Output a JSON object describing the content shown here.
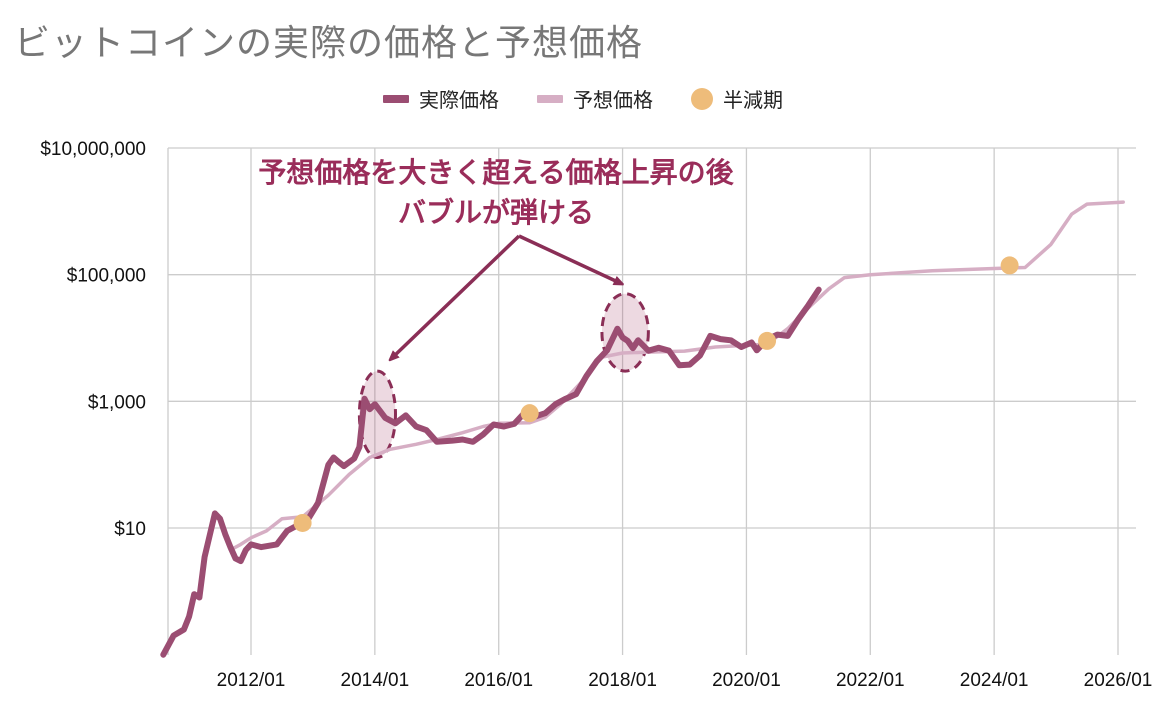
{
  "chart_data": {
    "type": "line",
    "title": "ビットコインの実際の価格と予想価格",
    "xlabel": "",
    "ylabel": "",
    "y_scale": "log",
    "ylim": [
      0.1,
      10000000
    ],
    "xlim": [
      "2010-07",
      "2026-02"
    ],
    "grid": true,
    "legend_position": "top",
    "y_tick_labels": [
      "$10",
      "$1,000",
      "$100,000",
      "$10,000,000"
    ],
    "y_tick_values": [
      10,
      1000,
      100000,
      10000000
    ],
    "x_tick_labels": [
      "2012/01",
      "2014/01",
      "2016/01",
      "2018/01",
      "2020/01",
      "2022/01",
      "2024/01",
      "2026/01"
    ],
    "x_tick_values": [
      "2012-01",
      "2014-01",
      "2016-01",
      "2018-01",
      "2020-01",
      "2022-01",
      "2024-01",
      "2026-01"
    ],
    "series": [
      {
        "name": "実際価格",
        "color": "#9b4d72",
        "points": [
          [
            "2010-08",
            0.1
          ],
          [
            "2010-10",
            0.2
          ],
          [
            "2010-12",
            0.25
          ],
          [
            "2011-01",
            0.4
          ],
          [
            "2011-02",
            0.9
          ],
          [
            "2011-03",
            0.8
          ],
          [
            "2011-04",
            3.5
          ],
          [
            "2011-06",
            17
          ],
          [
            "2011-07",
            14
          ],
          [
            "2011-08",
            8
          ],
          [
            "2011-09",
            5
          ],
          [
            "2011-10",
            3.3
          ],
          [
            "2011-11",
            3
          ],
          [
            "2011-12",
            4.5
          ],
          [
            "2012-01",
            5.5
          ],
          [
            "2012-03",
            5
          ],
          [
            "2012-06",
            5.5
          ],
          [
            "2012-08",
            9
          ],
          [
            "2012-10",
            11
          ],
          [
            "2012-12",
            13.5
          ],
          [
            "2013-02",
            25
          ],
          [
            "2013-04",
            100
          ],
          [
            "2013-05",
            130
          ],
          [
            "2013-06",
            110
          ],
          [
            "2013-07",
            95
          ],
          [
            "2013-09",
            125
          ],
          [
            "2013-10",
            190
          ],
          [
            "2013-11",
            1100
          ],
          [
            "2013-12",
            750
          ],
          [
            "2014-01",
            900
          ],
          [
            "2014-03",
            550
          ],
          [
            "2014-05",
            450
          ],
          [
            "2014-07",
            600
          ],
          [
            "2014-09",
            400
          ],
          [
            "2014-11",
            350
          ],
          [
            "2015-01",
            230
          ],
          [
            "2015-04",
            240
          ],
          [
            "2015-06",
            250
          ],
          [
            "2015-08",
            230
          ],
          [
            "2015-10",
            300
          ],
          [
            "2015-12",
            430
          ],
          [
            "2016-02",
            400
          ],
          [
            "2016-04",
            440
          ],
          [
            "2016-06",
            660
          ],
          [
            "2016-08",
            575
          ],
          [
            "2016-10",
            650
          ],
          [
            "2016-12",
            900
          ],
          [
            "2017-02",
            1100
          ],
          [
            "2017-04",
            1300
          ],
          [
            "2017-06",
            2500
          ],
          [
            "2017-08",
            4300
          ],
          [
            "2017-10",
            6400
          ],
          [
            "2017-12",
            14000
          ],
          [
            "2018-01",
            10200
          ],
          [
            "2018-02",
            9000
          ],
          [
            "2018-03",
            6900
          ],
          [
            "2018-04",
            9200
          ],
          [
            "2018-06",
            6300
          ],
          [
            "2018-08",
            7000
          ],
          [
            "2018-10",
            6300
          ],
          [
            "2018-12",
            3700
          ],
          [
            "2019-02",
            3800
          ],
          [
            "2019-04",
            5300
          ],
          [
            "2019-06",
            10800
          ],
          [
            "2019-08",
            9600
          ],
          [
            "2019-10",
            9200
          ],
          [
            "2019-12",
            7200
          ],
          [
            "2020-02",
            8500
          ],
          [
            "2020-03",
            6400
          ],
          [
            "2020-05",
            9500
          ],
          [
            "2020-07",
            11300
          ],
          [
            "2020-09",
            10800
          ],
          [
            "2020-11",
            19500
          ],
          [
            "2021-01",
            33000
          ],
          [
            "2021-03",
            58000
          ]
        ]
      },
      {
        "name": "予想価格",
        "color": "#d6aec4",
        "points": [
          [
            "2011-09",
            4.5
          ],
          [
            "2011-11",
            5.5
          ],
          [
            "2012-01",
            7
          ],
          [
            "2012-04",
            9
          ],
          [
            "2012-07",
            14
          ],
          [
            "2012-11",
            15
          ],
          [
            "2013-04",
            33
          ],
          [
            "2013-08",
            70
          ],
          [
            "2013-12",
            130
          ],
          [
            "2014-04",
            175
          ],
          [
            "2014-09",
            210
          ],
          [
            "2015-01",
            250
          ],
          [
            "2015-06",
            320
          ],
          [
            "2015-10",
            400
          ],
          [
            "2016-01",
            450
          ],
          [
            "2016-07",
            460
          ],
          [
            "2016-10",
            560
          ],
          [
            "2017-01",
            900
          ],
          [
            "2017-05",
            2000
          ],
          [
            "2017-09",
            5000
          ],
          [
            "2018-01",
            5800
          ],
          [
            "2018-06",
            6000
          ],
          [
            "2019-01",
            6200
          ],
          [
            "2019-07",
            7200
          ],
          [
            "2020-01",
            7700
          ],
          [
            "2020-05",
            8000
          ],
          [
            "2020-09",
            14000
          ],
          [
            "2021-01",
            30000
          ],
          [
            "2021-05",
            60000
          ],
          [
            "2021-08",
            90000
          ],
          [
            "2022-01",
            100000
          ],
          [
            "2023-01",
            115000
          ],
          [
            "2024-01",
            125000
          ],
          [
            "2024-07",
            130000
          ],
          [
            "2024-12",
            300000
          ],
          [
            "2025-04",
            900000
          ],
          [
            "2025-07",
            1300000
          ],
          [
            "2026-02",
            1400000
          ]
        ]
      },
      {
        "name": "半減期",
        "color": "#eebc7a",
        "type": "scatter",
        "points": [
          [
            "2012-11",
            12
          ],
          [
            "2016-07",
            650
          ],
          [
            "2020-05",
            9000
          ],
          [
            "2024-04",
            140000
          ]
        ]
      }
    ],
    "annotation": {
      "lines": [
        "予想価格を大きく超える価格上昇の後",
        "バブルが弾ける"
      ],
      "color": "#9a2d5a",
      "highlighted_bubbles": [
        {
          "from": "2013-10",
          "to": "2014-05",
          "y_low": 130,
          "y_high": 3000
        },
        {
          "from": "2017-09",
          "to": "2018-06",
          "y_low": 3000,
          "y_high": 50000
        }
      ]
    }
  }
}
